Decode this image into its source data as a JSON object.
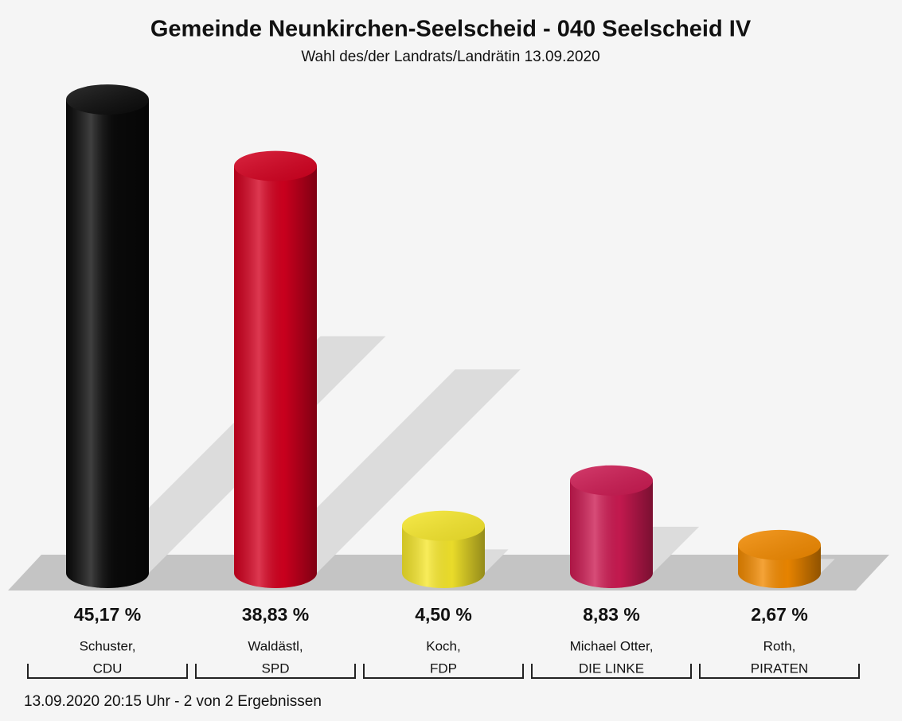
{
  "chart_data": {
    "type": "bar",
    "title": "Gemeinde Neunkirchen-Seelscheid - 040 Seelscheid IV",
    "subtitle": "Wahl des/der Landrats/Landrätin 13.09.2020",
    "categories": [
      "Schuster,",
      "Waldästl,",
      "Koch,",
      "Michael Otter,",
      "Roth,"
    ],
    "parties": [
      "CDU",
      "SPD",
      "FDP",
      "DIE LINKE",
      "PIRATEN"
    ],
    "values": [
      45.17,
      38.83,
      4.5,
      8.83,
      2.67
    ],
    "value_labels": [
      "45,17 %",
      "38,83 %",
      "4,50 %",
      "8,83 %",
      "2,67 %"
    ],
    "colors": [
      "#0a0a0a",
      "#d3001f",
      "#f6e72c",
      "#cc1a52",
      "#f28a00"
    ],
    "footnote": "13.09.2020 20:15 Uhr - 2 von 2 Ergebnissen"
  }
}
